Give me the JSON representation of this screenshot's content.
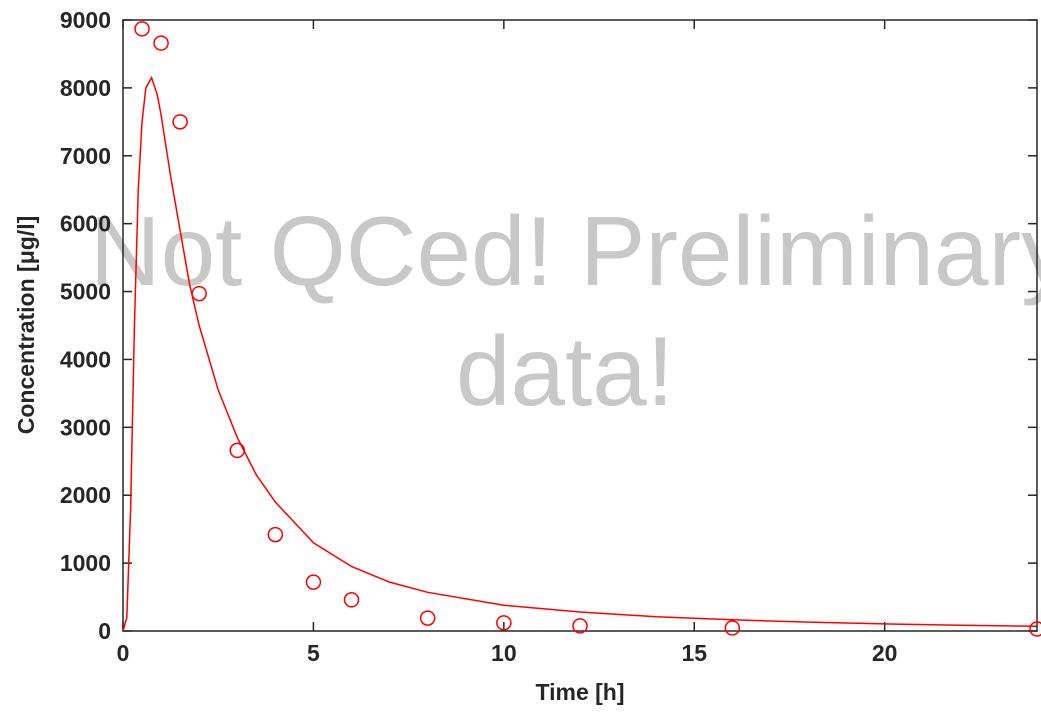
{
  "chart_data": {
    "type": "scatter",
    "x_label": "Time [h]",
    "y_label": "Concentration [μg/l]",
    "watermark": [
      "Not QCed! Preliminary",
      "data!"
    ],
    "xlim": [
      0,
      24
    ],
    "xticks": [
      0,
      5,
      10,
      15,
      20
    ],
    "ylim": [
      0,
      9000
    ],
    "yticks": [
      0,
      1000,
      2000,
      3000,
      4000,
      5000,
      6000,
      7000,
      8000,
      9000
    ],
    "series": [
      {
        "type": "scatter",
        "color": "#ff0000",
        "x": [
          0.5,
          1,
          1.5,
          2,
          3,
          4,
          5,
          6,
          8,
          10,
          12,
          16,
          24
        ],
        "values": [
          8870,
          8660,
          7500,
          4970,
          2660,
          1420,
          720,
          460,
          190,
          120,
          75,
          45,
          30
        ]
      },
      {
        "type": "line",
        "color": "#ff0000",
        "x": [
          0,
          0.1,
          0.2,
          0.3,
          0.4,
          0.5,
          0.6,
          0.75,
          0.9,
          1,
          1.25,
          1.5,
          1.75,
          2,
          2.5,
          3,
          3.5,
          4,
          5,
          6,
          7,
          8,
          10,
          12,
          14,
          16,
          18,
          20,
          22,
          24
        ],
        "values": [
          0,
          200,
          1800,
          4500,
          6500,
          7500,
          8000,
          8150,
          7900,
          7600,
          6700,
          5900,
          5100,
          4500,
          3550,
          2850,
          2300,
          1900,
          1300,
          950,
          720,
          570,
          380,
          280,
          210,
          165,
          130,
          105,
          85,
          70
        ]
      }
    ]
  }
}
